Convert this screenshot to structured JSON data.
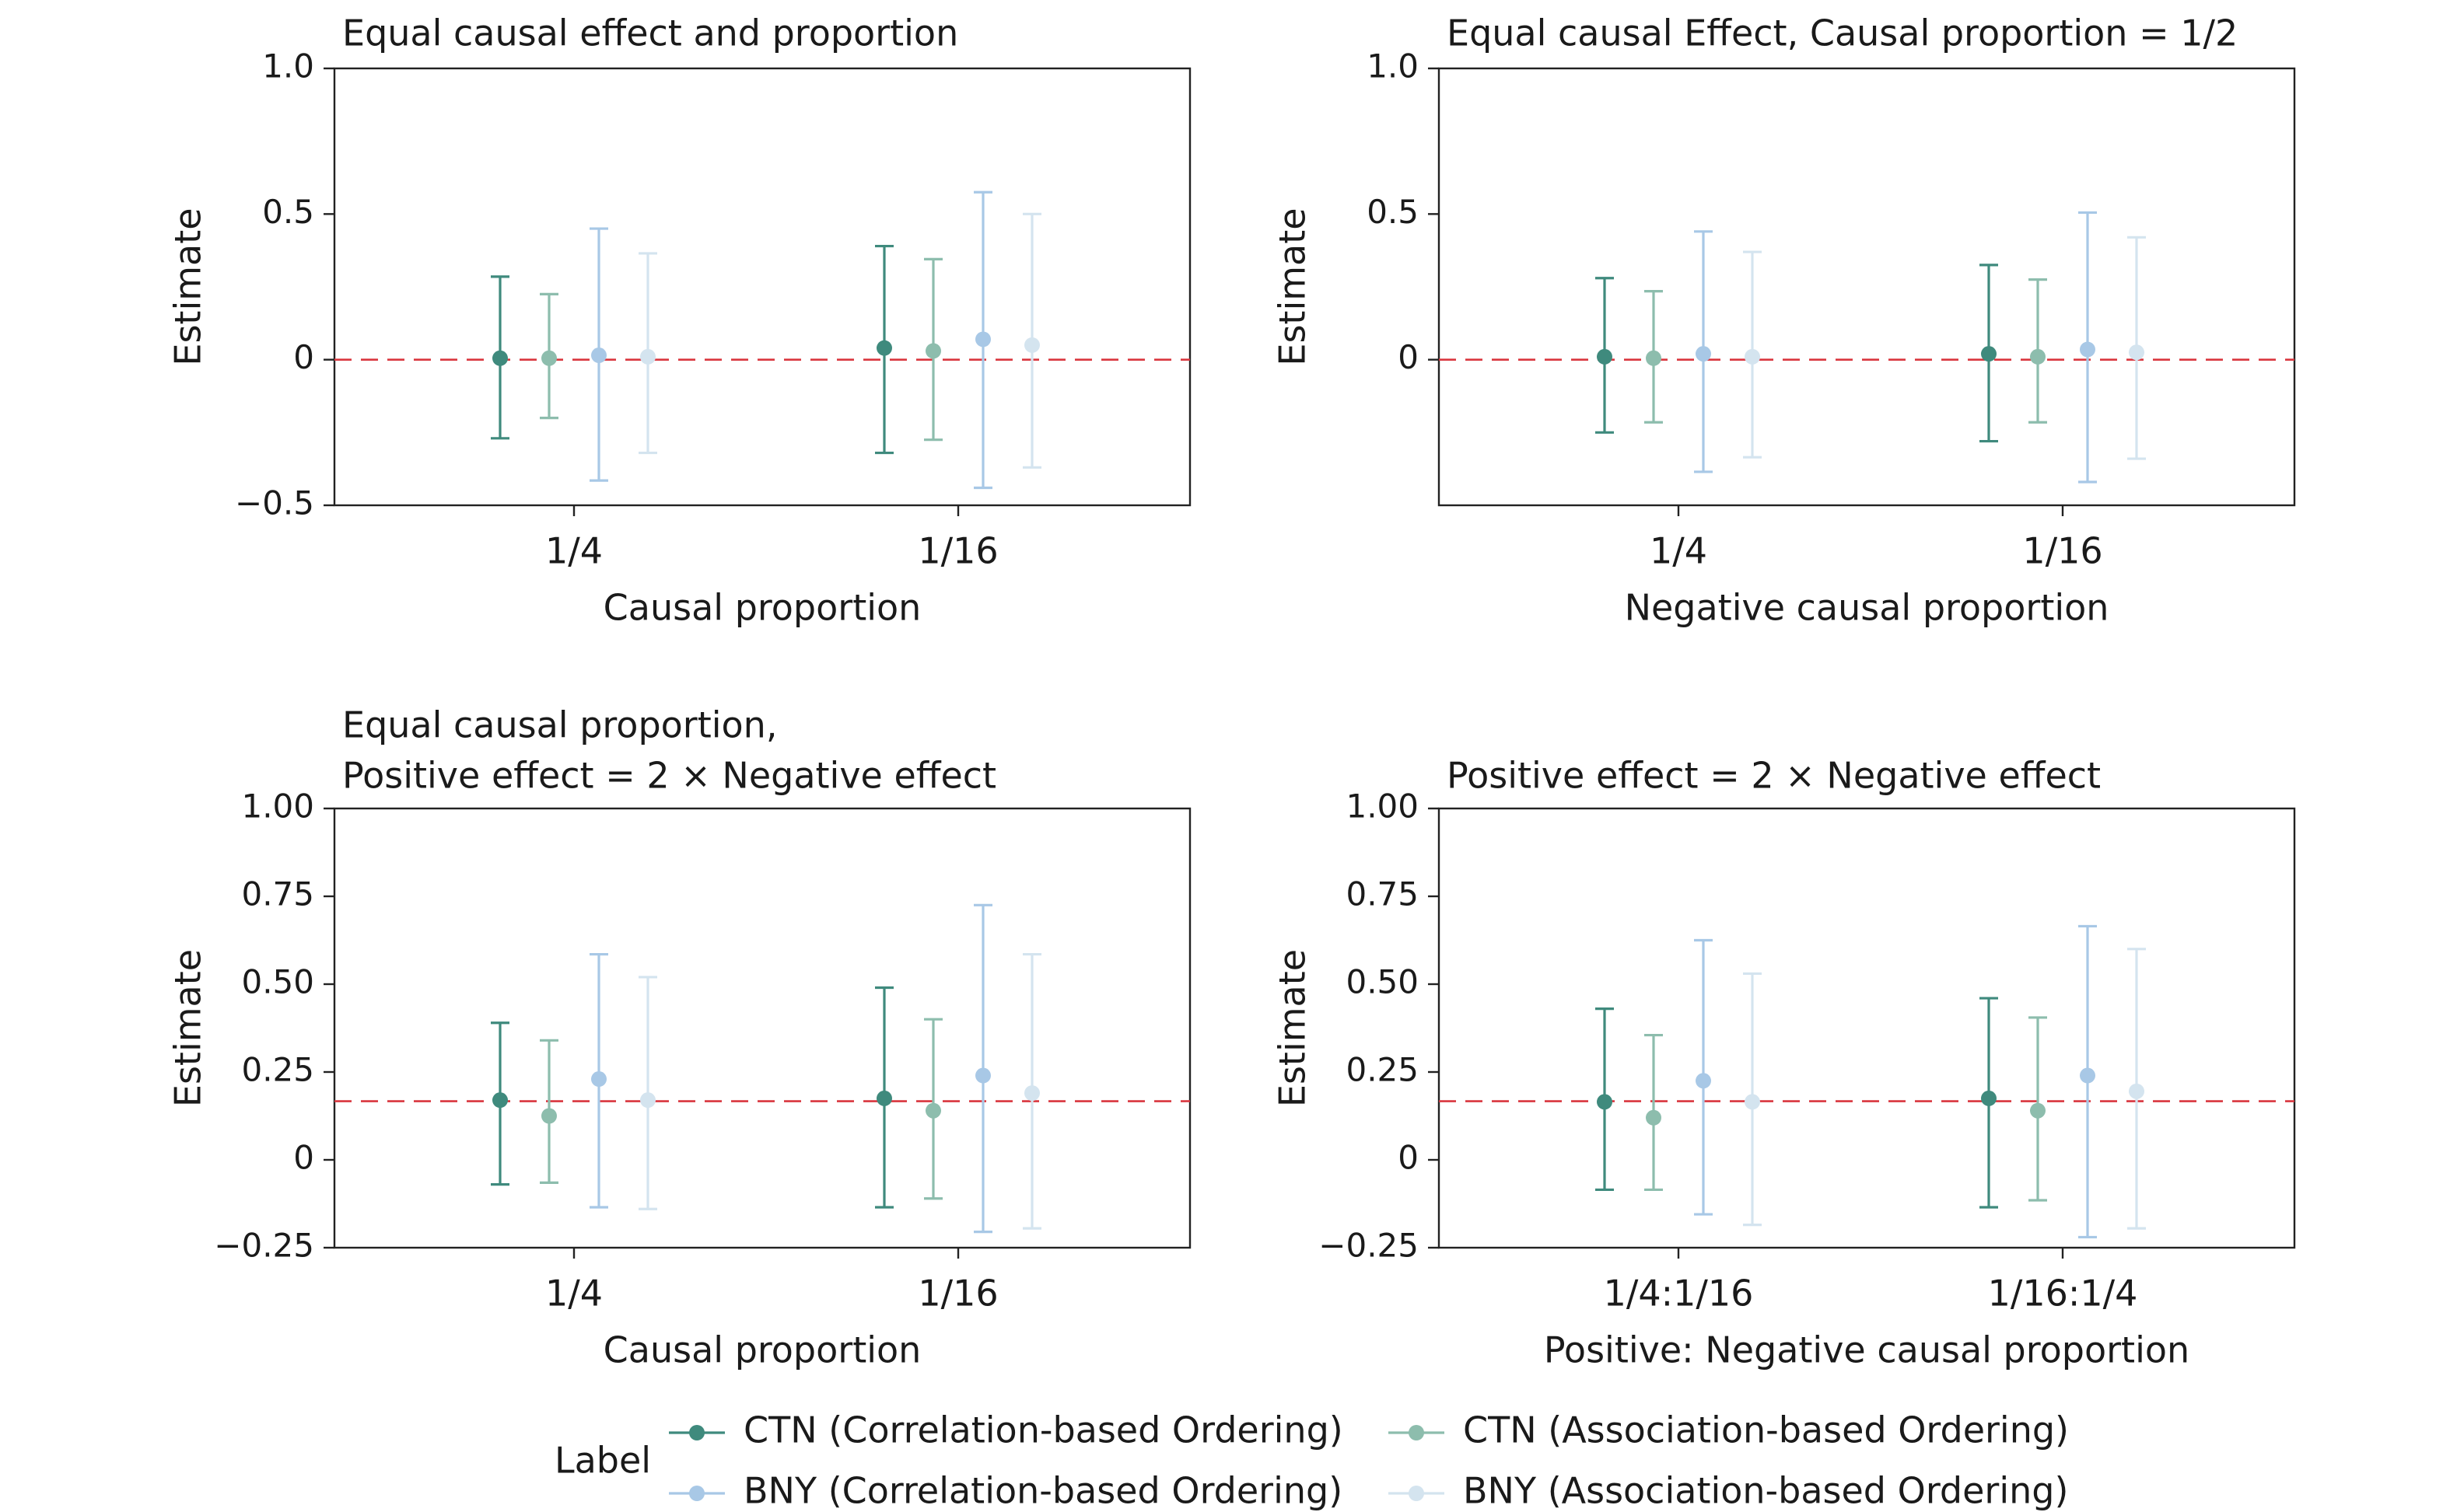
{
  "chart_data": [
    {
      "type": "scatter",
      "title": [
        "Equal causal effect and proportion"
      ],
      "xlabel": "Causal proportion",
      "ylabel": "Estimate",
      "categories": [
        "1/4",
        "1/16"
      ],
      "ylim": [
        -0.5,
        1.0
      ],
      "yticks": [
        -0.5,
        0,
        0.5,
        1.0
      ],
      "ytick_labels": [
        "−0.5",
        "0",
        "0.5",
        "1.0"
      ],
      "reference_line": 0.0,
      "series": [
        {
          "name": "CTN (Correlation-based Ordering)",
          "points": [
            {
              "est": 0.005,
              "lo": -0.27,
              "hi": 0.285
            },
            {
              "est": 0.04,
              "lo": -0.32,
              "hi": 0.39
            }
          ]
        },
        {
          "name": "CTN (Association-based Ordering)",
          "points": [
            {
              "est": 0.005,
              "lo": -0.2,
              "hi": 0.225
            },
            {
              "est": 0.03,
              "lo": -0.275,
              "hi": 0.345
            }
          ]
        },
        {
          "name": "BNY (Correlation-based Ordering)",
          "points": [
            {
              "est": 0.015,
              "lo": -0.415,
              "hi": 0.45
            },
            {
              "est": 0.07,
              "lo": -0.44,
              "hi": 0.575
            }
          ]
        },
        {
          "name": "BNY (Association-based Ordering)",
          "points": [
            {
              "est": 0.01,
              "lo": -0.32,
              "hi": 0.365
            },
            {
              "est": 0.05,
              "lo": -0.37,
              "hi": 0.5
            }
          ]
        }
      ]
    },
    {
      "type": "scatter",
      "title": [
        "Equal causal Effect, Causal proportion = 1/2"
      ],
      "xlabel": "Negative causal proportion",
      "ylabel": "Estimate",
      "categories": [
        "1/4",
        "1/16"
      ],
      "ylim": [
        -0.5,
        1.0
      ],
      "yticks": [
        0,
        0.5,
        1.0
      ],
      "ytick_labels": [
        "0",
        "0.5",
        "1.0"
      ],
      "reference_line": 0.0,
      "series": [
        {
          "name": "CTN (Correlation-based Ordering)",
          "points": [
            {
              "est": 0.01,
              "lo": -0.25,
              "hi": 0.28
            },
            {
              "est": 0.02,
              "lo": -0.28,
              "hi": 0.325
            }
          ]
        },
        {
          "name": "CTN (Association-based Ordering)",
          "points": [
            {
              "est": 0.005,
              "lo": -0.215,
              "hi": 0.235
            },
            {
              "est": 0.01,
              "lo": -0.215,
              "hi": 0.275
            }
          ]
        },
        {
          "name": "BNY (Correlation-based Ordering)",
          "points": [
            {
              "est": 0.02,
              "lo": -0.385,
              "hi": 0.44
            },
            {
              "est": 0.035,
              "lo": -0.42,
              "hi": 0.505
            }
          ]
        },
        {
          "name": "BNY (Association-based Ordering)",
          "points": [
            {
              "est": 0.01,
              "lo": -0.335,
              "hi": 0.37
            },
            {
              "est": 0.025,
              "lo": -0.34,
              "hi": 0.42
            }
          ]
        }
      ]
    },
    {
      "type": "scatter",
      "title": [
        "Equal causal proportion,",
        "Positive effect = 2 × Negative effect"
      ],
      "xlabel": "Causal proportion",
      "ylabel": "Estimate",
      "categories": [
        "1/4",
        "1/16"
      ],
      "ylim": [
        -0.25,
        1.0
      ],
      "yticks": [
        -0.25,
        0,
        0.25,
        0.5,
        0.75,
        1.0
      ],
      "ytick_labels": [
        "−0.25",
        "0",
        "0.25",
        "0.50",
        "0.75",
        "1.00"
      ],
      "reference_line": 0.167,
      "series": [
        {
          "name": "CTN (Correlation-based Ordering)",
          "points": [
            {
              "est": 0.17,
              "lo": -0.07,
              "hi": 0.39
            },
            {
              "est": 0.175,
              "lo": -0.135,
              "hi": 0.49
            }
          ]
        },
        {
          "name": "CTN (Association-based Ordering)",
          "points": [
            {
              "est": 0.125,
              "lo": -0.065,
              "hi": 0.34
            },
            {
              "est": 0.14,
              "lo": -0.11,
              "hi": 0.4
            }
          ]
        },
        {
          "name": "BNY (Correlation-based Ordering)",
          "points": [
            {
              "est": 0.23,
              "lo": -0.135,
              "hi": 0.585
            },
            {
              "est": 0.24,
              "lo": -0.205,
              "hi": 0.725
            }
          ]
        },
        {
          "name": "BNY (Association-based Ordering)",
          "points": [
            {
              "est": 0.17,
              "lo": -0.14,
              "hi": 0.52
            },
            {
              "est": 0.19,
              "lo": -0.195,
              "hi": 0.585
            }
          ]
        }
      ]
    },
    {
      "type": "scatter",
      "title": [
        "Positive effect = 2 × Negative effect"
      ],
      "xlabel": "Positive: Negative causal proportion",
      "ylabel": "Estimate",
      "categories": [
        "1/4:1/16",
        "1/16:1/4"
      ],
      "ylim": [
        -0.25,
        1.0
      ],
      "yticks": [
        -0.25,
        0,
        0.25,
        0.5,
        0.75,
        1.0
      ],
      "ytick_labels": [
        "−0.25",
        "0",
        "0.25",
        "0.50",
        "0.75",
        "1.00"
      ],
      "reference_line": 0.167,
      "series": [
        {
          "name": "CTN (Correlation-based Ordering)",
          "points": [
            {
              "est": 0.165,
              "lo": -0.085,
              "hi": 0.43
            },
            {
              "est": 0.175,
              "lo": -0.135,
              "hi": 0.46
            }
          ]
        },
        {
          "name": "CTN (Association-based Ordering)",
          "points": [
            {
              "est": 0.12,
              "lo": -0.085,
              "hi": 0.355
            },
            {
              "est": 0.14,
              "lo": -0.115,
              "hi": 0.405
            }
          ]
        },
        {
          "name": "BNY (Correlation-based Ordering)",
          "points": [
            {
              "est": 0.225,
              "lo": -0.155,
              "hi": 0.625
            },
            {
              "est": 0.24,
              "lo": -0.22,
              "hi": 0.665
            }
          ]
        },
        {
          "name": "BNY (Association-based Ordering)",
          "points": [
            {
              "est": 0.165,
              "lo": -0.185,
              "hi": 0.53
            },
            {
              "est": 0.195,
              "lo": -0.195,
              "hi": 0.6
            }
          ]
        }
      ]
    }
  ],
  "legend": {
    "title": "Label",
    "placement": "bottom-center",
    "entries": [
      "CTN (Correlation-based Ordering)",
      "CTN (Association-based Ordering)",
      "BNY (Correlation-based Ordering)",
      "BNY (Association-based Ordering)"
    ]
  },
  "colors": {
    "series": [
      "#3f8a7d",
      "#8dbdad",
      "#a8c8e6",
      "#d4e4ef"
    ],
    "reference_line": "#d9363e",
    "axis": "#222222"
  }
}
